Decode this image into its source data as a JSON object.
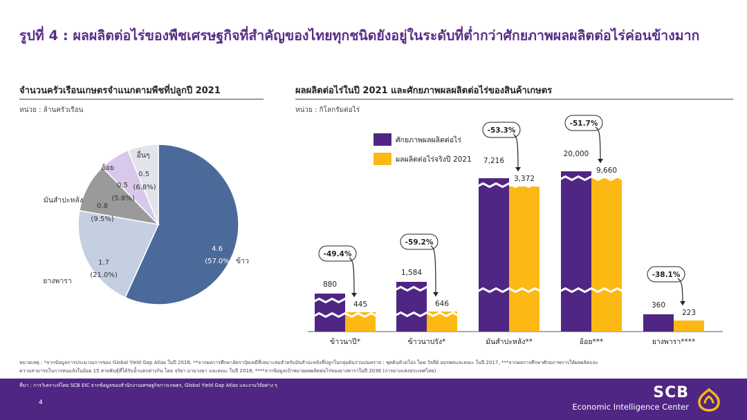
{
  "title": "รูปที่ 4 : ผลผลิตต่อไร่ของพืชเศรษฐกิจที่สำคัญของไทยทุกชนิดยังอยู่ในระดับที่ต่ำกว่าศักยภาพผลผลิตต่อไร่ค่อนข้างมาก",
  "left_panel": {
    "title": "จำนวนครัวเรือนเกษตรจำแนกตามพืชที่ปลูกปี 2021",
    "unit": "หน่วย : ล้านครัวเรือน"
  },
  "right_panel": {
    "title": "ผลผลิตต่อไร่ในปี 2021 และศักยภาพผลผลิตต่อไร่ของสินค้าเกษตร",
    "unit": "หน่วย : กิโลกรัมต่อไร่"
  },
  "chart_data": [
    {
      "type": "pie",
      "title": "จำนวนครัวเรือนเกษตรจำแนกตามพืชที่ปลูกปี 2021",
      "unit": "ล้านครัวเรือน",
      "slices": [
        {
          "label": "ข้าว",
          "value": 4.6,
          "value_label": "4.6",
          "pct_label": "(57.0%)",
          "color": "#4a6a99"
        },
        {
          "label": "ยางพารา",
          "value": 1.7,
          "value_label": "1.7",
          "pct_label": "(21.0%)",
          "color": "#c5cfe2"
        },
        {
          "label": "มันสำปะหลัง",
          "value": 0.8,
          "value_label": "0.8",
          "pct_label": "(9.5%)",
          "color": "#9a9a9a"
        },
        {
          "label": "อ้อย",
          "value": 0.5,
          "value_label": "0.5",
          "pct_label": "(5.8%)",
          "color": "#d8c8ea"
        },
        {
          "label": "อื่นๆ",
          "value": 0.5,
          "value_label": "0.5",
          "pct_label": "(6.8%)",
          "color": "#e2e4ec"
        }
      ]
    },
    {
      "type": "bar",
      "title": "ผลผลิตต่อไร่ในปี 2021 และศักยภาพผลผลิตต่อไร่ของสินค้าเกษตร",
      "unit": "กิโลกรัมต่อไร่",
      "categories": [
        "ข้าวนาปี*",
        "ข้าวนาปรัง*",
        "มันสำปะหลัง**",
        "อ้อย***",
        "ยางพารา****"
      ],
      "series": [
        {
          "name": "ศักยภาพผลผลิตต่อไร่",
          "color": "#4f2683",
          "values": [
            880,
            1584,
            7216,
            20000,
            360
          ],
          "labels": [
            "880",
            "1,584",
            "7,216",
            "20,000",
            "360"
          ]
        },
        {
          "name": "ผลผลิตต่อไร่จริงปี 2021",
          "color": "#fcb813",
          "values": [
            445,
            646,
            3372,
            9660,
            223
          ],
          "labels": [
            "445",
            "646",
            "3,372",
            "9,660",
            "223"
          ]
        }
      ],
      "gaps": [
        "-49.4%",
        "-59.2%",
        "-53.3%",
        "-51.7%",
        "-38.1%"
      ],
      "axis_break": [
        true,
        true,
        true,
        true,
        false
      ]
    }
  ],
  "notes": {
    "line1": "หมายเหตุ : *จากข้อมูลการประมาณการของ Global Yield Gap Atlas ในปี 2018, **จากผลการศึกษาอัตราปุ๋ยเคมีที่เหมาะสมสำหรับมันสำปะหลังที่ปลูกในกลุ่มดินร่วนปนทราย : ชุดดินห้วยโป่ง โดย วัลลีย์ อมรพลและคณะ ในปี 2017, ***จากผลการศึกษาศักยภาพการให้ผลผลิตและ",
    "line2": "ความสามารถในการทนแล้งในอ้อย 15 สายพันธุ์ที่ได้รับน้ำแตกต่างกัน โดย จริยา นามวงษา และคณะ ในปี 2018, ****จากข้อมูลเป้าหมายผลผลิตต่อไร่ของยางพาราในปี 2036 (การยางแห่งประเทศไทย)"
  },
  "footer": {
    "source": "ที่มา : การวิเคราะห์โดย SCB EIC จากข้อมูลของสำนักงานเศรษฐกิจการเกษตร, Global Yield Gap Atlas และงานวิจัยต่าง ๆ",
    "page": "4",
    "brand": "SCB",
    "brand_sub": "Economic Intelligence Center"
  }
}
